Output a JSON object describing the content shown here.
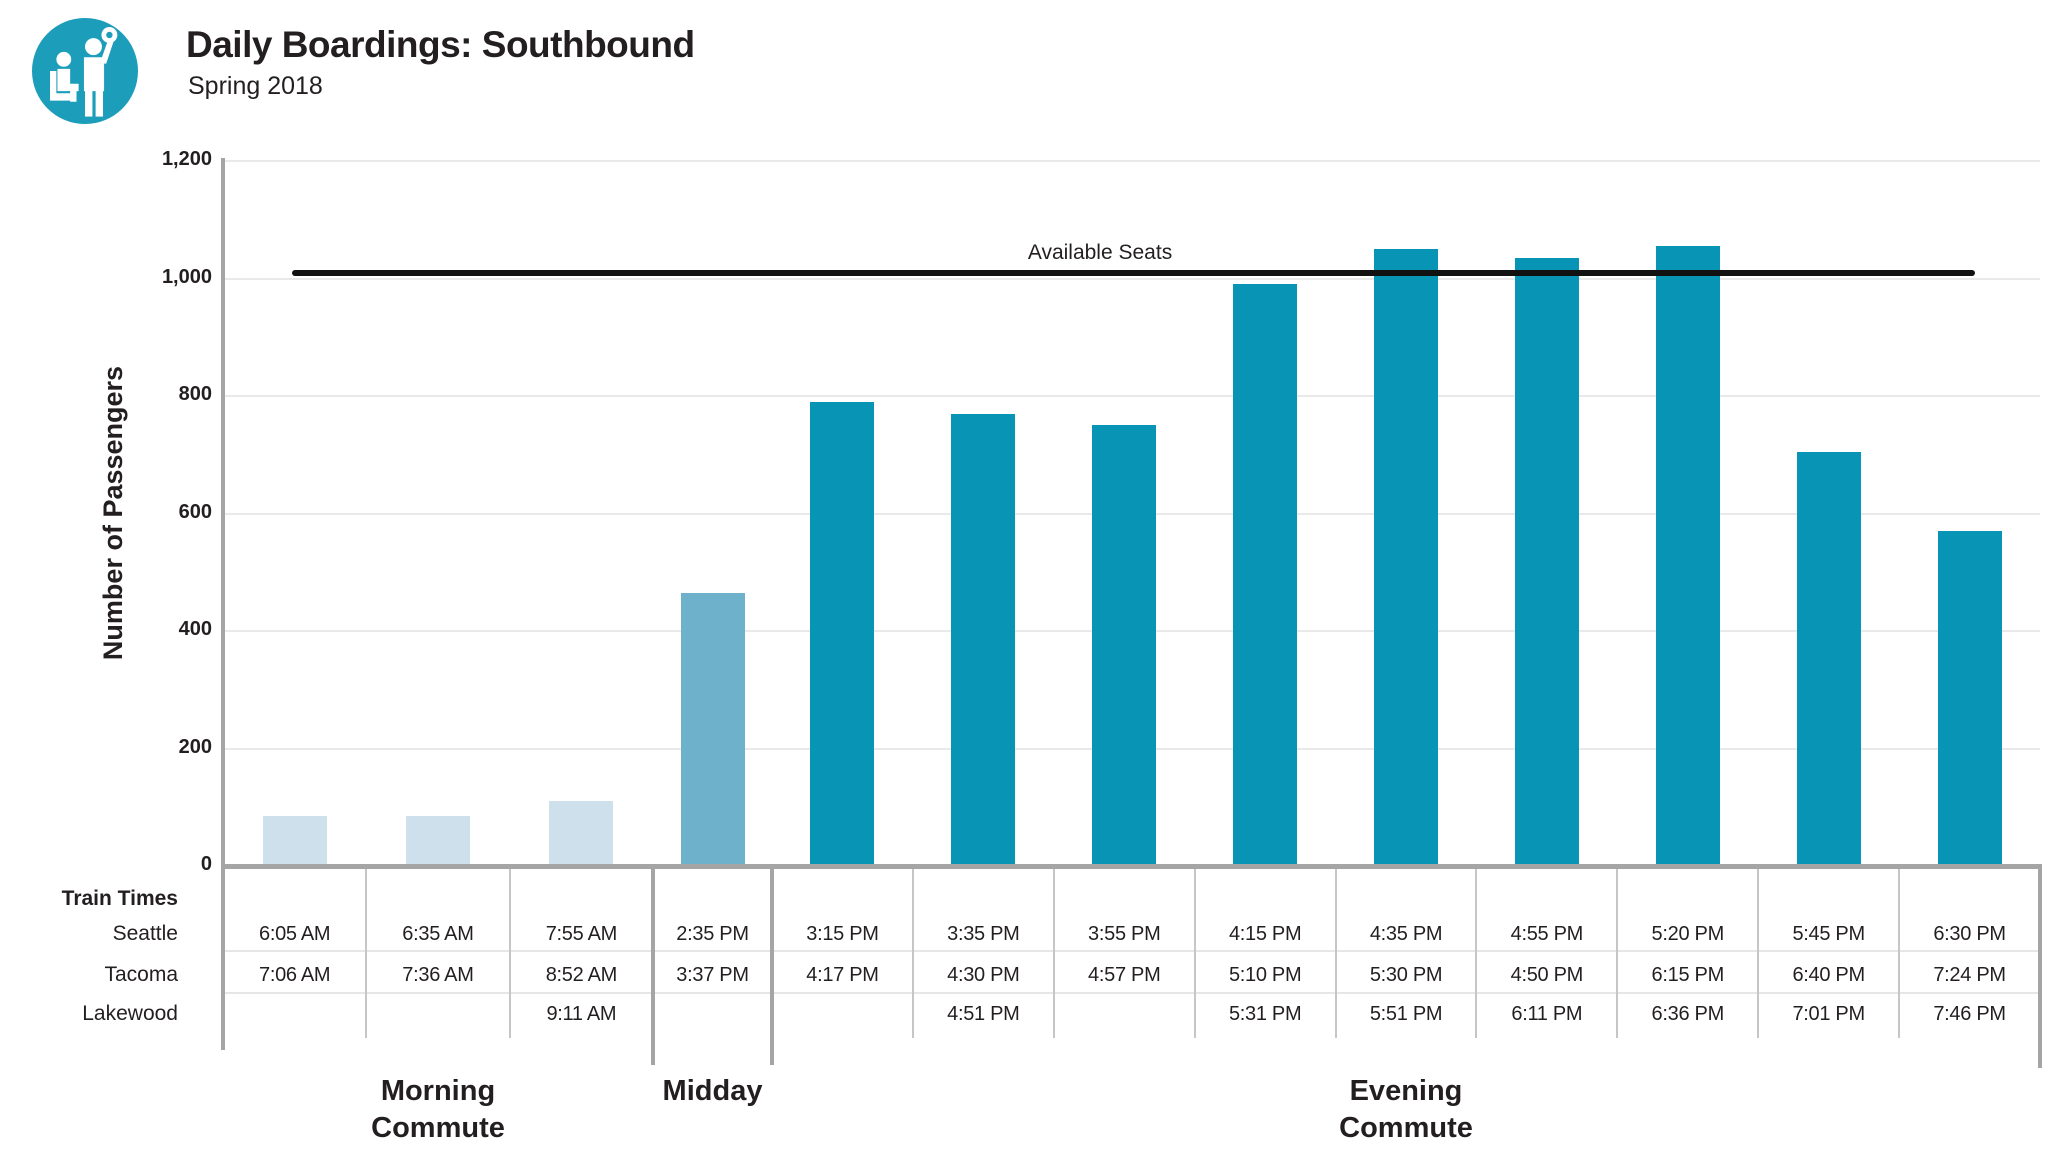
{
  "header": {
    "title": "Daily Boardings: Southbound",
    "subtitle": "Spring 2018"
  },
  "logo": {
    "icon": "transit-riders-icon"
  },
  "colors": {
    "logo": "#1C9DB9",
    "morning": "#CFE0ED",
    "midday": "#6DB2CA",
    "evening": "#0894B4",
    "axis": "#A5A5A5",
    "grid": "#E9E9E9",
    "line": "#111111",
    "text": "#231F20"
  },
  "chart_data": {
    "type": "bar",
    "title": "Daily Boardings: Southbound",
    "subtitle": "Spring 2018",
    "ylabel": "Number of Passengers",
    "xlabel": "",
    "ylim": [
      0,
      1200
    ],
    "ytick_values": [
      0,
      200,
      400,
      600,
      800,
      1000,
      1200
    ],
    "ytick_labels": [
      "0",
      "200",
      "400",
      "600",
      "800",
      "1,000",
      "1,200"
    ],
    "grid": "horizontal",
    "legend": false,
    "annotation_line": {
      "label": "Available Seats",
      "value": 1010
    },
    "categories": [
      "6:05 AM",
      "6:35 AM",
      "7:55 AM",
      "2:35 PM",
      "3:15 PM",
      "3:35 PM",
      "3:55 PM",
      "4:15 PM",
      "4:35 PM",
      "4:55 PM",
      "5:20 PM",
      "5:45 PM",
      "6:30 PM"
    ],
    "values": [
      85,
      85,
      110,
      465,
      790,
      770,
      750,
      990,
      1050,
      1035,
      1055,
      705,
      570
    ],
    "groups": [
      {
        "label_lines": [
          "Morning",
          "Commute"
        ],
        "color_key": "morning",
        "bars": [
          {
            "value": 85,
            "times": [
              "6:05 AM",
              "7:06 AM",
              ""
            ]
          },
          {
            "value": 85,
            "times": [
              "6:35 AM",
              "7:36 AM",
              ""
            ]
          },
          {
            "value": 110,
            "times": [
              "7:55 AM",
              "8:52 AM",
              "9:11 AM"
            ]
          }
        ]
      },
      {
        "label_lines": [
          "Midday"
        ],
        "color_key": "midday",
        "bars": [
          {
            "value": 465,
            "times": [
              "2:35 PM",
              "3:37 PM",
              ""
            ]
          }
        ]
      },
      {
        "label_lines": [
          "Evening",
          "Commute"
        ],
        "color_key": "evening",
        "bars": [
          {
            "value": 790,
            "times": [
              "3:15 PM",
              "4:17 PM",
              ""
            ]
          },
          {
            "value": 770,
            "times": [
              "3:35 PM",
              "4:30 PM",
              "4:51 PM"
            ]
          },
          {
            "value": 750,
            "times": [
              "3:55 PM",
              "4:57 PM",
              ""
            ]
          },
          {
            "value": 990,
            "times": [
              "4:15 PM",
              "5:10 PM",
              "5:31 PM"
            ]
          },
          {
            "value": 1050,
            "times": [
              "4:35 PM",
              "5:30 PM",
              "5:51 PM"
            ]
          },
          {
            "value": 1035,
            "times": [
              "4:55 PM",
              "4:50 PM",
              "6:11 PM"
            ]
          },
          {
            "value": 1055,
            "times": [
              "5:20 PM",
              "6:15 PM",
              "6:36 PM"
            ]
          },
          {
            "value": 705,
            "times": [
              "5:45 PM",
              "6:40 PM",
              "7:01 PM"
            ]
          },
          {
            "value": 570,
            "times": [
              "6:30 PM",
              "7:24 PM",
              "7:46 PM"
            ]
          }
        ]
      }
    ]
  },
  "table": {
    "header_label": "Train Times",
    "row_labels": [
      "Seattle",
      "Tacoma",
      "Lakewood"
    ]
  }
}
